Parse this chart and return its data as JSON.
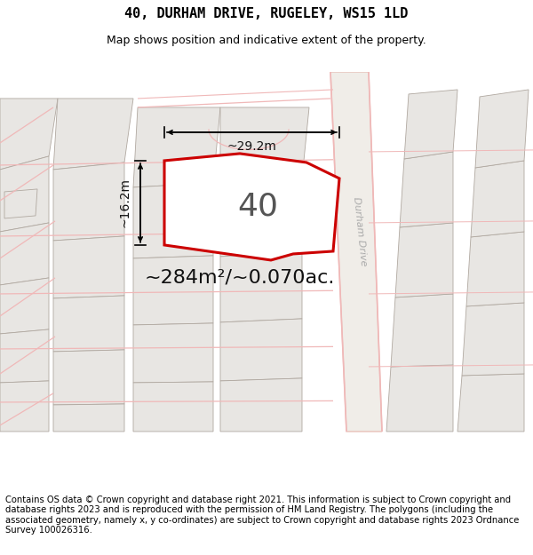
{
  "title_line1": "40, DURHAM DRIVE, RUGELEY, WS15 1LD",
  "title_line2": "Map shows position and indicative extent of the property.",
  "footer_text": "Contains OS data © Crown copyright and database right 2021. This information is subject to Crown copyright and database rights 2023 and is reproduced with the permission of HM Land Registry. The polygons (including the associated geometry, namely x, y co-ordinates) are subject to Crown copyright and database rights 2023 Ordnance Survey 100026316.",
  "area_label": "~284m²/~0.070ac.",
  "plot_number": "40",
  "dim_width": "~29.2m",
  "dim_height": "~16.2m",
  "map_bg": "#f7f6f4",
  "poly_fill": "#e8e6e3",
  "poly_edge": "#b0a8a0",
  "road_line": "#f0b8b8",
  "road_fill": "#f5f0ee",
  "highlight_edge": "#cc0000",
  "highlight_fill": "#ffffff",
  "durham_drive_color": "#c8c0bc",
  "title_fontsize": 11,
  "subtitle_fontsize": 9,
  "footer_fontsize": 7.2,
  "area_fontsize": 16,
  "number_fontsize": 26,
  "dim_fontsize": 10
}
